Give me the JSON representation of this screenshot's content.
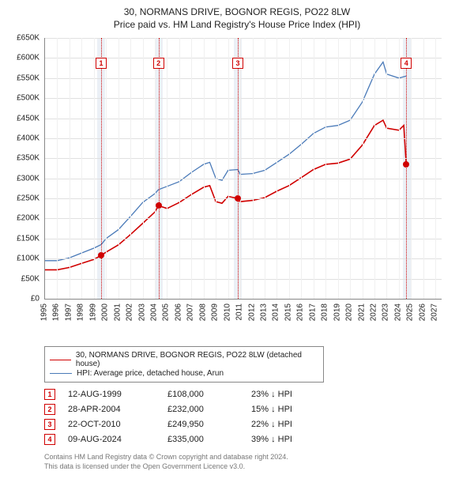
{
  "title_line1": "30, NORMANS DRIVE, BOGNOR REGIS, PO22 8LW",
  "title_line2": "Price paid vs. HM Land Registry's House Price Index (HPI)",
  "chart": {
    "type": "line",
    "background_color": "#ffffff",
    "grid_color": "#e0e0e0",
    "vgrid_color": "#f0f0f0",
    "shade_color": "#e8edf5",
    "axis_color": "#888888",
    "x": {
      "min": 1995,
      "max": 2027.5,
      "tick_step": 1,
      "label_fontsize": 10,
      "rotate": -90
    },
    "y": {
      "min": 0,
      "max": 650000,
      "tick_step": 50000,
      "prefix": "£",
      "suffix": "K",
      "divide": 1000,
      "label_fontsize": 10
    },
    "series": [
      {
        "name": "hpi",
        "label": "HPI: Average price, detached house, Arun",
        "color": "#4a7ab8",
        "width": 1.3,
        "data": [
          [
            1995.0,
            95000
          ],
          [
            1996.0,
            95000
          ],
          [
            1997.0,
            102000
          ],
          [
            1998.0,
            114000
          ],
          [
            1999.0,
            126000
          ],
          [
            1999.6,
            135000
          ],
          [
            2000.0,
            150000
          ],
          [
            2001.0,
            172000
          ],
          [
            2002.0,
            205000
          ],
          [
            2003.0,
            240000
          ],
          [
            2004.0,
            262000
          ],
          [
            2004.3,
            272000
          ],
          [
            2005.0,
            280000
          ],
          [
            2006.0,
            292000
          ],
          [
            2007.0,
            315000
          ],
          [
            2008.0,
            335000
          ],
          [
            2008.5,
            340000
          ],
          [
            2009.0,
            300000
          ],
          [
            2009.5,
            295000
          ],
          [
            2010.0,
            320000
          ],
          [
            2010.8,
            322000
          ],
          [
            2011.0,
            310000
          ],
          [
            2012.0,
            312000
          ],
          [
            2013.0,
            320000
          ],
          [
            2014.0,
            340000
          ],
          [
            2015.0,
            360000
          ],
          [
            2016.0,
            385000
          ],
          [
            2017.0,
            412000
          ],
          [
            2018.0,
            428000
          ],
          [
            2019.0,
            432000
          ],
          [
            2020.0,
            445000
          ],
          [
            2021.0,
            490000
          ],
          [
            2022.0,
            560000
          ],
          [
            2022.7,
            590000
          ],
          [
            2023.0,
            560000
          ],
          [
            2024.0,
            550000
          ],
          [
            2024.6,
            555000
          ]
        ]
      },
      {
        "name": "property",
        "label": "30, NORMANS DRIVE, BOGNOR REGIS, PO22 8LW (detached house)",
        "color": "#d00000",
        "width": 1.6,
        "data": [
          [
            1995.0,
            72000
          ],
          [
            1996.0,
            72000
          ],
          [
            1997.0,
            78000
          ],
          [
            1998.0,
            88000
          ],
          [
            1999.0,
            98000
          ],
          [
            1999.6,
            108000
          ],
          [
            2000.0,
            116000
          ],
          [
            2001.0,
            134000
          ],
          [
            2002.0,
            160000
          ],
          [
            2003.0,
            188000
          ],
          [
            2004.0,
            216000
          ],
          [
            2004.3,
            232000
          ],
          [
            2005.0,
            225000
          ],
          [
            2006.0,
            240000
          ],
          [
            2007.0,
            260000
          ],
          [
            2008.0,
            278000
          ],
          [
            2008.5,
            282000
          ],
          [
            2009.0,
            242000
          ],
          [
            2009.5,
            238000
          ],
          [
            2010.0,
            255000
          ],
          [
            2010.8,
            250000
          ],
          [
            2011.0,
            242000
          ],
          [
            2012.0,
            245000
          ],
          [
            2013.0,
            252000
          ],
          [
            2014.0,
            268000
          ],
          [
            2015.0,
            282000
          ],
          [
            2016.0,
            302000
          ],
          [
            2017.0,
            322000
          ],
          [
            2018.0,
            335000
          ],
          [
            2019.0,
            338000
          ],
          [
            2020.0,
            348000
          ],
          [
            2021.0,
            383000
          ],
          [
            2022.0,
            432000
          ],
          [
            2022.7,
            445000
          ],
          [
            2023.0,
            425000
          ],
          [
            2024.0,
            420000
          ],
          [
            2024.4,
            432000
          ],
          [
            2024.6,
            335000
          ]
        ],
        "markers": [
          {
            "x": 1999.6,
            "y": 108000
          },
          {
            "x": 2004.3,
            "y": 232000
          },
          {
            "x": 2010.8,
            "y": 250000
          },
          {
            "x": 2024.6,
            "y": 335000
          }
        ]
      }
    ],
    "event_lines": {
      "color": "#d00000",
      "dash": "dotted",
      "box_top_y": 600000,
      "positions": [
        {
          "n": "1",
          "x": 1999.6
        },
        {
          "n": "2",
          "x": 2004.3
        },
        {
          "n": "3",
          "x": 2010.8
        },
        {
          "n": "4",
          "x": 2024.6
        }
      ]
    },
    "shaded_x_ranges": [
      [
        1999.3,
        1999.95
      ],
      [
        2004.0,
        2004.65
      ],
      [
        2010.5,
        2011.15
      ],
      [
        2024.3,
        2024.95
      ]
    ]
  },
  "legend": {
    "items": [
      {
        "color": "#d00000",
        "width": 1.6,
        "label": "30, NORMANS DRIVE, BOGNOR REGIS, PO22 8LW (detached house)"
      },
      {
        "color": "#4a7ab8",
        "width": 1.3,
        "label": "HPI: Average price, detached house, Arun"
      }
    ]
  },
  "events_table": [
    {
      "n": "1",
      "date": "12-AUG-1999",
      "price": "£108,000",
      "diff": "23% ↓ HPI"
    },
    {
      "n": "2",
      "date": "28-APR-2004",
      "price": "£232,000",
      "diff": "15% ↓ HPI"
    },
    {
      "n": "3",
      "date": "22-OCT-2010",
      "price": "£249,950",
      "diff": "22% ↓ HPI"
    },
    {
      "n": "4",
      "date": "09-AUG-2024",
      "price": "£335,000",
      "diff": "39% ↓ HPI"
    }
  ],
  "footnote_line1": "Contains HM Land Registry data © Crown copyright and database right 2024.",
  "footnote_line2": "This data is licensed under the Open Government Licence v3.0."
}
